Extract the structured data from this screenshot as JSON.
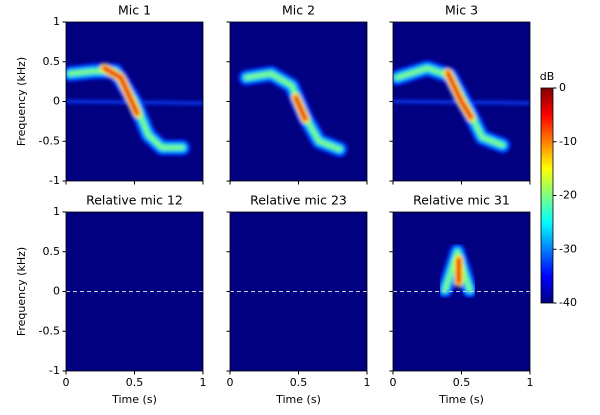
{
  "chart_data": [
    {
      "type": "heatmap",
      "title": "Mic 1",
      "xlim": [
        0,
        1
      ],
      "xticks": [
        0,
        0.5,
        1
      ],
      "ylim": [
        -1,
        1
      ],
      "yticks": [
        -1,
        -0.5,
        0,
        0.5,
        1
      ],
      "ylabel": "Frequency (kHz)"
    },
    {
      "type": "heatmap",
      "title": "Mic 2",
      "xlim": [
        0,
        1
      ],
      "xticks": [
        0,
        0.5,
        1
      ],
      "ylim": [
        -1,
        1
      ],
      "yticks": [
        -1,
        -0.5,
        0,
        0.5,
        1
      ]
    },
    {
      "type": "heatmap",
      "title": "Mic 3",
      "xlim": [
        0,
        1
      ],
      "xticks": [
        0,
        0.5,
        1
      ],
      "ylim": [
        -1,
        1
      ],
      "yticks": [
        -1,
        -0.5,
        0,
        0.5,
        1
      ]
    },
    {
      "type": "heatmap",
      "title": "Relative mic 12",
      "xlim": [
        0,
        1
      ],
      "xticks": [
        0,
        0.5,
        1
      ],
      "ylim": [
        -1,
        1
      ],
      "yticks": [
        -1,
        -0.5,
        0,
        0.5,
        1
      ],
      "xlabel": "Time (s)",
      "ylabel": "Frequency (kHz)",
      "hline": 0
    },
    {
      "type": "heatmap",
      "title": "Relative mic 23",
      "xlim": [
        0,
        1
      ],
      "xticks": [
        0,
        0.5,
        1
      ],
      "ylim": [
        -1,
        1
      ],
      "yticks": [
        -1,
        -0.5,
        0,
        0.5,
        1
      ],
      "xlabel": "Time (s)",
      "hline": 0
    },
    {
      "type": "heatmap",
      "title": "Relative mic 31",
      "xlim": [
        0,
        1
      ],
      "xticks": [
        0,
        0.5,
        1
      ],
      "ylim": [
        -1,
        1
      ],
      "yticks": [
        -1,
        -0.5,
        0,
        0.5,
        1
      ],
      "xlabel": "Time (s)",
      "hline": 0
    }
  ],
  "colorbar": {
    "label": "dB",
    "lim": [
      -40,
      0
    ],
    "ticks": [
      0,
      -10,
      -20,
      -30,
      -40
    ],
    "colormap": "jet"
  }
}
